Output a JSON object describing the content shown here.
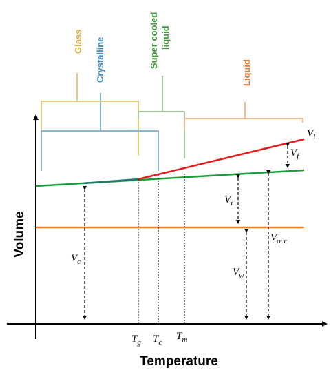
{
  "axes": {
    "y_title": "Volume",
    "x_title": "Temperature"
  },
  "categories": {
    "glass": {
      "label": "Glass",
      "color": "#d9a93b"
    },
    "crystalline": {
      "label": "Crystalline",
      "color": "#3d8fc6"
    },
    "supercooled": {
      "line1": "Super cooled",
      "line2": "liquid",
      "color": "#3f9a3a"
    },
    "liquid": {
      "label": "Liquid",
      "color": "#e8792e"
    }
  },
  "bracket_colors": {
    "glass": "#e6cc7e",
    "crystalline": "#8ab7d4",
    "supercooled": "#a8c9a0",
    "liquid": "#f3b98a"
  },
  "line_colors": {
    "liquid_line": "#e31a1c",
    "occupied_line": "#1a9f3a",
    "crystal_segment": "#1f7a6e",
    "water_line": "#ef7d22"
  },
  "x_ticks": [
    {
      "base": "T",
      "sub": "g"
    },
    {
      "base": "T",
      "sub": "c"
    },
    {
      "base": "T",
      "sub": "m"
    }
  ],
  "volumes": [
    {
      "base": "V",
      "sub": "l"
    },
    {
      "base": "V",
      "sub": "f"
    },
    {
      "base": "V",
      "sub": "i"
    },
    {
      "base": "V",
      "sub": "occ"
    },
    {
      "base": "V",
      "sub": "c"
    },
    {
      "base": "V",
      "sub": "w"
    }
  ]
}
